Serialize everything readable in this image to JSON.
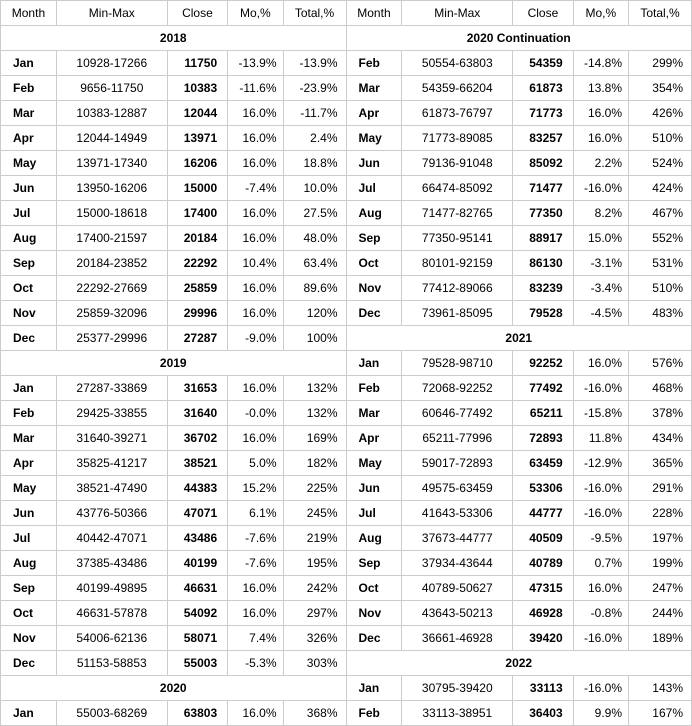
{
  "headers": [
    "Month",
    "Min-Max",
    "Close",
    "Mo,%",
    "Total,%"
  ],
  "left": [
    {
      "type": "year",
      "label": "2018"
    },
    {
      "m": "Jan",
      "rng": "10928-17266",
      "cl": "11750",
      "mo": "-13.9%",
      "tot": "-13.9%"
    },
    {
      "m": "Feb",
      "rng": "9656-11750",
      "cl": "10383",
      "mo": "-11.6%",
      "tot": "-23.9%"
    },
    {
      "m": "Mar",
      "rng": "10383-12887",
      "cl": "12044",
      "mo": "16.0%",
      "tot": "-11.7%"
    },
    {
      "m": "Apr",
      "rng": "12044-14949",
      "cl": "13971",
      "mo": "16.0%",
      "tot": "2.4%"
    },
    {
      "m": "May",
      "rng": "13971-17340",
      "cl": "16206",
      "mo": "16.0%",
      "tot": "18.8%"
    },
    {
      "m": "Jun",
      "rng": "13950-16206",
      "cl": "15000",
      "mo": "-7.4%",
      "tot": "10.0%"
    },
    {
      "m": "Jul",
      "rng": "15000-18618",
      "cl": "17400",
      "mo": "16.0%",
      "tot": "27.5%"
    },
    {
      "m": "Aug",
      "rng": "17400-21597",
      "cl": "20184",
      "mo": "16.0%",
      "tot": "48.0%"
    },
    {
      "m": "Sep",
      "rng": "20184-23852",
      "cl": "22292",
      "mo": "10.4%",
      "tot": "63.4%"
    },
    {
      "m": "Oct",
      "rng": "22292-27669",
      "cl": "25859",
      "mo": "16.0%",
      "tot": "89.6%"
    },
    {
      "m": "Nov",
      "rng": "25859-32096",
      "cl": "29996",
      "mo": "16.0%",
      "tot": "120%"
    },
    {
      "m": "Dec",
      "rng": "25377-29996",
      "cl": "27287",
      "mo": "-9.0%",
      "tot": "100%"
    },
    {
      "type": "year",
      "label": "2019"
    },
    {
      "m": "Jan",
      "rng": "27287-33869",
      "cl": "31653",
      "mo": "16.0%",
      "tot": "132%"
    },
    {
      "m": "Feb",
      "rng": "29425-33855",
      "cl": "31640",
      "mo": "-0.0%",
      "tot": "132%"
    },
    {
      "m": "Mar",
      "rng": "31640-39271",
      "cl": "36702",
      "mo": "16.0%",
      "tot": "169%"
    },
    {
      "m": "Apr",
      "rng": "35825-41217",
      "cl": "38521",
      "mo": "5.0%",
      "tot": "182%"
    },
    {
      "m": "May",
      "rng": "38521-47490",
      "cl": "44383",
      "mo": "15.2%",
      "tot": "225%"
    },
    {
      "m": "Jun",
      "rng": "43776-50366",
      "cl": "47071",
      "mo": "6.1%",
      "tot": "245%"
    },
    {
      "m": "Jul",
      "rng": "40442-47071",
      "cl": "43486",
      "mo": "-7.6%",
      "tot": "219%"
    },
    {
      "m": "Aug",
      "rng": "37385-43486",
      "cl": "40199",
      "mo": "-7.6%",
      "tot": "195%"
    },
    {
      "m": "Sep",
      "rng": "40199-49895",
      "cl": "46631",
      "mo": "16.0%",
      "tot": "242%"
    },
    {
      "m": "Oct",
      "rng": "46631-57878",
      "cl": "54092",
      "mo": "16.0%",
      "tot": "297%"
    },
    {
      "m": "Nov",
      "rng": "54006-62136",
      "cl": "58071",
      "mo": "7.4%",
      "tot": "326%"
    },
    {
      "m": "Dec",
      "rng": "51153-58853",
      "cl": "55003",
      "mo": "-5.3%",
      "tot": "303%"
    },
    {
      "type": "year",
      "label": "2020"
    },
    {
      "m": "Jan",
      "rng": "55003-68269",
      "cl": "63803",
      "mo": "16.0%",
      "tot": "368%"
    }
  ],
  "right": [
    {
      "type": "year",
      "label": "2020 Continuation"
    },
    {
      "m": "Feb",
      "rng": "50554-63803",
      "cl": "54359",
      "mo": "-14.8%",
      "tot": "299%"
    },
    {
      "m": "Mar",
      "rng": "54359-66204",
      "cl": "61873",
      "mo": "13.8%",
      "tot": "354%"
    },
    {
      "m": "Apr",
      "rng": "61873-76797",
      "cl": "71773",
      "mo": "16.0%",
      "tot": "426%"
    },
    {
      "m": "May",
      "rng": "71773-89085",
      "cl": "83257",
      "mo": "16.0%",
      "tot": "510%"
    },
    {
      "m": "Jun",
      "rng": "79136-91048",
      "cl": "85092",
      "mo": "2.2%",
      "tot": "524%"
    },
    {
      "m": "Jul",
      "rng": "66474-85092",
      "cl": "71477",
      "mo": "-16.0%",
      "tot": "424%"
    },
    {
      "m": "Aug",
      "rng": "71477-82765",
      "cl": "77350",
      "mo": "8.2%",
      "tot": "467%"
    },
    {
      "m": "Sep",
      "rng": "77350-95141",
      "cl": "88917",
      "mo": "15.0%",
      "tot": "552%"
    },
    {
      "m": "Oct",
      "rng": "80101-92159",
      "cl": "86130",
      "mo": "-3.1%",
      "tot": "531%"
    },
    {
      "m": "Nov",
      "rng": "77412-89066",
      "cl": "83239",
      "mo": "-3.4%",
      "tot": "510%"
    },
    {
      "m": "Dec",
      "rng": "73961-85095",
      "cl": "79528",
      "mo": "-4.5%",
      "tot": "483%"
    },
    {
      "type": "year",
      "label": "2021"
    },
    {
      "m": "Jan",
      "rng": "79528-98710",
      "cl": "92252",
      "mo": "16.0%",
      "tot": "576%"
    },
    {
      "m": "Feb",
      "rng": "72068-92252",
      "cl": "77492",
      "mo": "-16.0%",
      "tot": "468%"
    },
    {
      "m": "Mar",
      "rng": "60646-77492",
      "cl": "65211",
      "mo": "-15.8%",
      "tot": "378%"
    },
    {
      "m": "Apr",
      "rng": "65211-77996",
      "cl": "72893",
      "mo": "11.8%",
      "tot": "434%"
    },
    {
      "m": "May",
      "rng": "59017-72893",
      "cl": "63459",
      "mo": "-12.9%",
      "tot": "365%"
    },
    {
      "m": "Jun",
      "rng": "49575-63459",
      "cl": "53306",
      "mo": "-16.0%",
      "tot": "291%"
    },
    {
      "m": "Jul",
      "rng": "41643-53306",
      "cl": "44777",
      "mo": "-16.0%",
      "tot": "228%"
    },
    {
      "m": "Aug",
      "rng": "37673-44777",
      "cl": "40509",
      "mo": "-9.5%",
      "tot": "197%"
    },
    {
      "m": "Sep",
      "rng": "37934-43644",
      "cl": "40789",
      "mo": "0.7%",
      "tot": "199%"
    },
    {
      "m": "Oct",
      "rng": "40789-50627",
      "cl": "47315",
      "mo": "16.0%",
      "tot": "247%"
    },
    {
      "m": "Nov",
      "rng": "43643-50213",
      "cl": "46928",
      "mo": "-0.8%",
      "tot": "244%"
    },
    {
      "m": "Dec",
      "rng": "36661-46928",
      "cl": "39420",
      "mo": "-16.0%",
      "tot": "189%"
    },
    {
      "type": "year",
      "label": "2022"
    },
    {
      "m": "Jan",
      "rng": "30795-39420",
      "cl": "33113",
      "mo": "-16.0%",
      "tot": "143%"
    },
    {
      "m": "Feb",
      "rng": "33113-38951",
      "cl": "36403",
      "mo": "9.9%",
      "tot": "167%"
    }
  ]
}
